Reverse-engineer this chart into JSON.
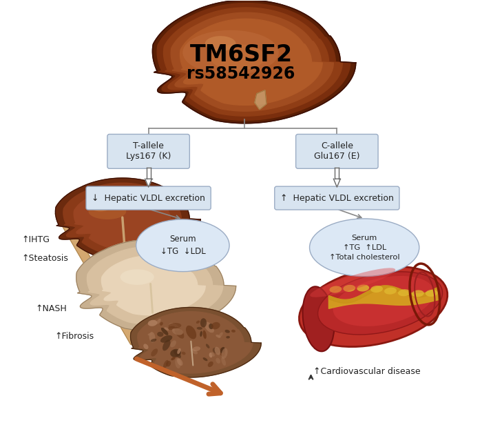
{
  "bg_color": "#ffffff",
  "fig_width": 7.0,
  "fig_height": 6.16,
  "dpi": 100,
  "title_main": "TM6SF2",
  "title_sub": "rs58542926",
  "left_box_title": "T-allele\nLys167 (K)",
  "right_box_title": "C-allele\nGlu167 (E)",
  "left_vldl_text": "↓  Hepatic VLDL excretion",
  "right_vldl_text": "↑  Hepatic VLDL excretion",
  "left_serum_line1": "Serum",
  "left_serum_line2": "↓TG  ↓LDL",
  "right_serum_line1": "Serum",
  "right_serum_line2": "↑TG  ↑LDL",
  "right_serum_line3": "↑Total cholesterol",
  "left_label1": "↑IHTG",
  "left_label2": "↑Steatosis",
  "left_label3": "↑NASH",
  "left_label4": "↑Fibrosis",
  "right_label": "↑Cardiovascular disease",
  "box_fill": "#d8e4f0",
  "box_edge": "#9bacc4",
  "serum_fill": "#dce8f5",
  "serum_edge": "#9bacc4",
  "arrow_dark": "#333333",
  "fibrosis_arrow_color": "#c0622a",
  "text_color": "#222222",
  "label_fontsize": 9,
  "vldl_fontsize": 9,
  "serum_fontsize": 8.5,
  "title_fontsize": 24,
  "subtitle_fontsize": 17
}
